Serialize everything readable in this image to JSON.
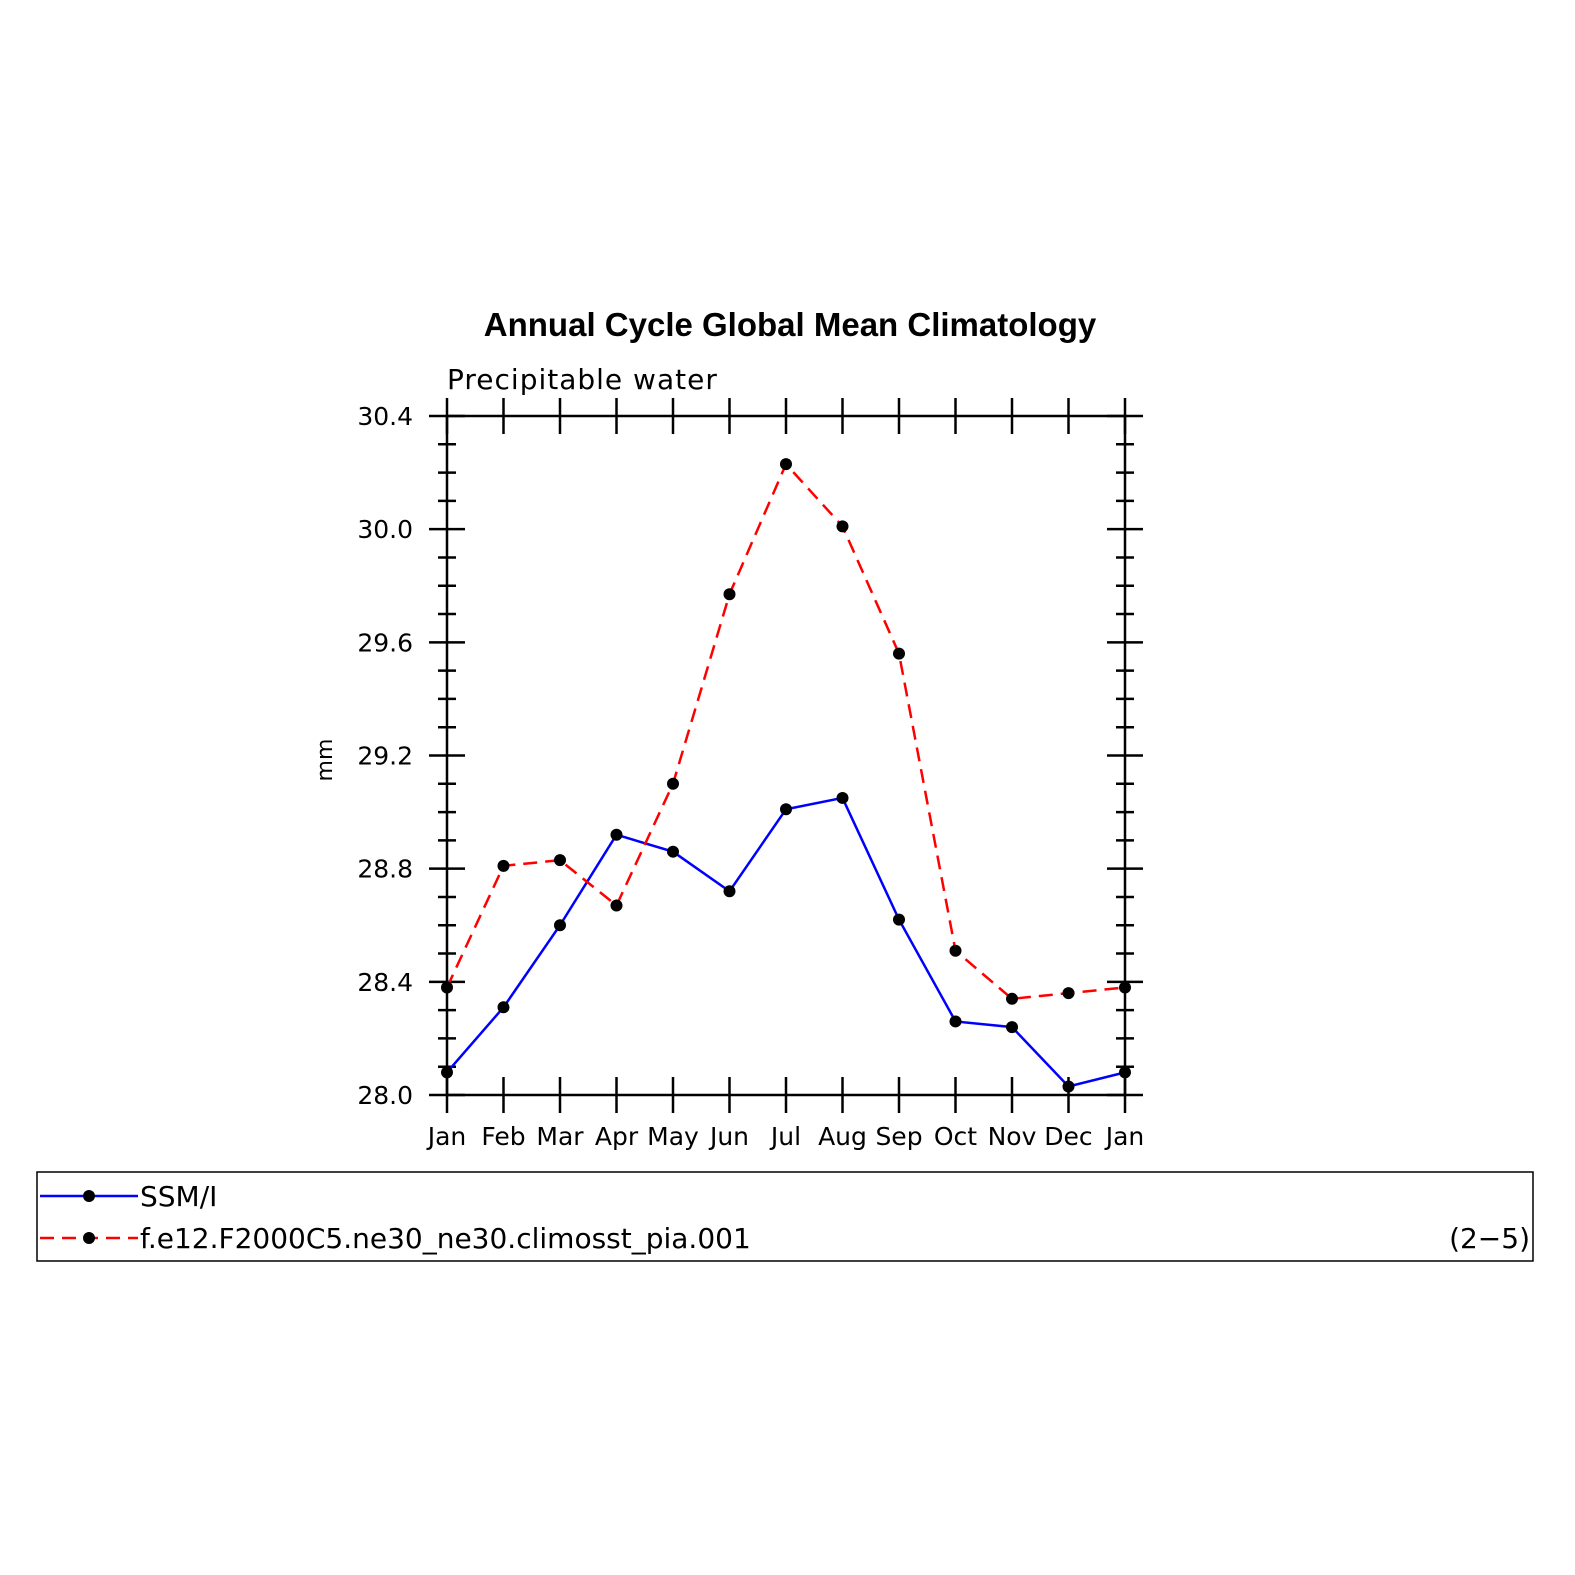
{
  "chart_data": {
    "type": "line",
    "title": "Annual Cycle Global Mean Climatology",
    "subtitle": "Precipitable water",
    "ylabel": "mm",
    "xlabel": "",
    "categories": [
      "Jan",
      "Feb",
      "Mar",
      "Apr",
      "May",
      "Jun",
      "Jul",
      "Aug",
      "Sep",
      "Oct",
      "Nov",
      "Dec",
      "Jan"
    ],
    "ylim": [
      28.0,
      30.4
    ],
    "yticks": [
      "28.0",
      "28.4",
      "28.8",
      "29.2",
      "29.6",
      "30.0",
      "30.4"
    ],
    "grid": false,
    "legend_position": "bottom",
    "series": [
      {
        "name": "SSM/I",
        "color": "#0000ff",
        "dash": "solid",
        "values": [
          28.08,
          28.31,
          28.6,
          28.92,
          28.86,
          28.72,
          29.01,
          29.05,
          28.62,
          28.26,
          28.24,
          28.03,
          28.08
        ]
      },
      {
        "name": "f.e12.F2000C5.ne30_ne30.climosst_pia.001",
        "color": "#ff0000",
        "dash": "dashed",
        "values": [
          28.38,
          28.81,
          28.83,
          28.67,
          29.1,
          29.77,
          30.23,
          30.01,
          29.56,
          28.51,
          28.34,
          28.36,
          28.38
        ]
      }
    ],
    "panel_label": "(2−5)"
  }
}
